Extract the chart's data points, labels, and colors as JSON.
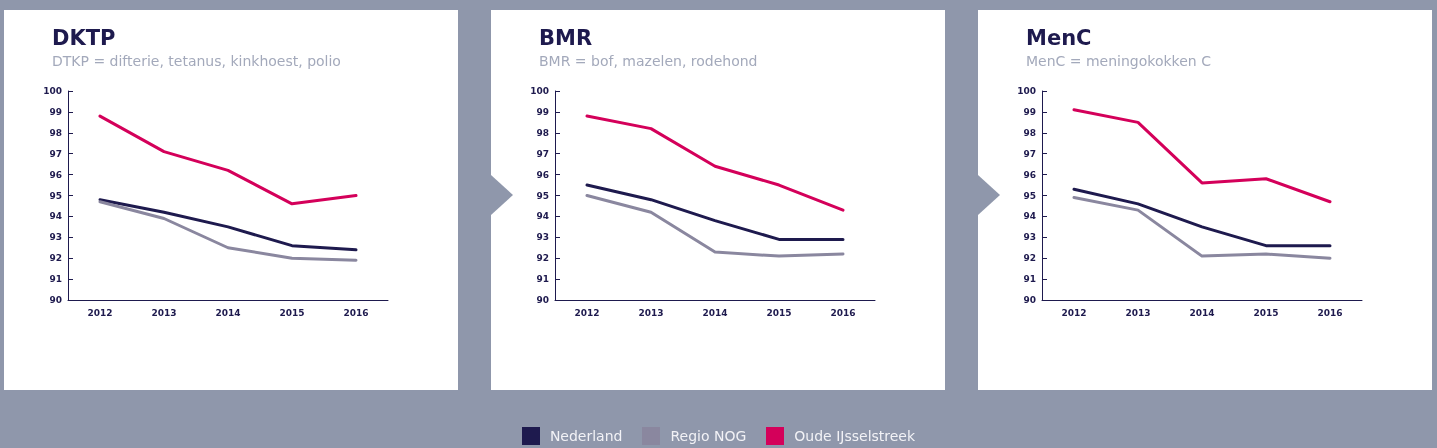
{
  "chart_data": [
    {
      "type": "line",
      "title": "DKTP",
      "subtitle": "DTKP = difterie, tetanus, kinkhoest, polio",
      "categories": [
        "2012",
        "2013",
        "2014",
        "2015",
        "2016"
      ],
      "ylim": [
        90,
        100
      ],
      "yticks": [
        90,
        91,
        92,
        93,
        94,
        95,
        96,
        97,
        98,
        99,
        100
      ],
      "grid": false,
      "marker": "none",
      "legend": "bottom",
      "series": [
        {
          "name": "Nederland",
          "color": "#1e1a4e",
          "values": [
            94.8,
            94.2,
            93.5,
            92.6,
            92.4
          ]
        },
        {
          "name": "Regio NOG",
          "color": "#8a879f",
          "values": [
            94.7,
            93.9,
            92.5,
            92.0,
            91.9
          ]
        },
        {
          "name": "Oude IJsselstreek",
          "color": "#d4005a",
          "values": [
            98.8,
            97.1,
            96.2,
            94.6,
            95.0
          ]
        }
      ]
    },
    {
      "type": "line",
      "title": "BMR",
      "subtitle": "BMR = bof, mazelen, rodehond",
      "categories": [
        "2012",
        "2013",
        "2014",
        "2015",
        "2016"
      ],
      "ylim": [
        90,
        100
      ],
      "yticks": [
        90,
        91,
        92,
        93,
        94,
        95,
        96,
        97,
        98,
        99,
        100
      ],
      "grid": false,
      "marker": "none",
      "legend": "bottom",
      "series": [
        {
          "name": "Nederland",
          "color": "#1e1a4e",
          "values": [
            95.5,
            94.8,
            93.8,
            92.9,
            92.9
          ]
        },
        {
          "name": "Regio NOG",
          "color": "#8a879f",
          "values": [
            95.0,
            94.2,
            92.3,
            92.1,
            92.2
          ]
        },
        {
          "name": "Oude IJsselstreek",
          "color": "#d4005a",
          "values": [
            98.8,
            98.2,
            96.4,
            95.5,
            94.3
          ]
        }
      ]
    },
    {
      "type": "line",
      "title": "MenC",
      "subtitle": "MenC = meningokokken C",
      "categories": [
        "2012",
        "2013",
        "2014",
        "2015",
        "2016"
      ],
      "ylim": [
        90,
        100
      ],
      "yticks": [
        90,
        91,
        92,
        93,
        94,
        95,
        96,
        97,
        98,
        99,
        100
      ],
      "grid": false,
      "marker": "none",
      "legend": "bottom",
      "series": [
        {
          "name": "Nederland",
          "color": "#1e1a4e",
          "values": [
            95.3,
            94.6,
            93.5,
            92.6,
            92.6
          ]
        },
        {
          "name": "Regio NOG",
          "color": "#8a879f",
          "values": [
            94.9,
            94.3,
            92.1,
            92.2,
            92.0
          ]
        },
        {
          "name": "Oude IJsselstreek",
          "color": "#d4005a",
          "values": [
            99.1,
            98.5,
            95.6,
            95.8,
            94.7
          ]
        }
      ]
    }
  ]
}
